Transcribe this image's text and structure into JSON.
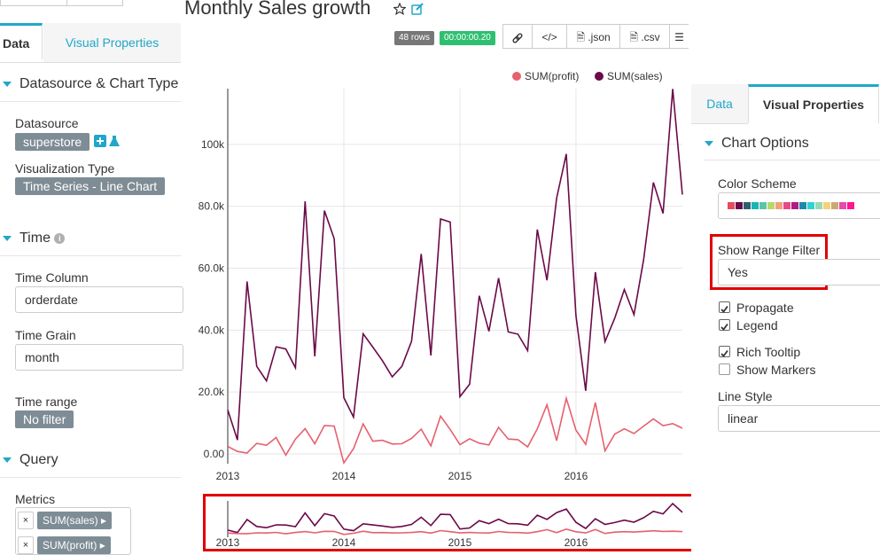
{
  "header": {
    "title": "Monthly Sales growth",
    "rows_badge": "48 rows",
    "time_badge": "00:00:00.20",
    "buttons": {
      "link_icon": "link-icon",
      "code_icon": "code-icon",
      "json_label": ".json",
      "csv_label": ".csv",
      "menu_icon": "menu-icon"
    },
    "colors": {
      "rows_badge": "#777777",
      "time_badge": "#2fbf71"
    }
  },
  "left_panel": {
    "tabs": [
      {
        "label": "Data",
        "active": true
      },
      {
        "label": "Visual Properties",
        "active": false
      }
    ],
    "sections": {
      "datasource": {
        "title": "Datasource & Chart Type",
        "datasource_label": "Datasource",
        "datasource_value": "superstore",
        "viz_label": "Visualization Type",
        "viz_value": "Time Series - Line Chart"
      },
      "time": {
        "title": "Time",
        "column_label": "Time Column",
        "column_value": "orderdate",
        "grain_label": "Time Grain",
        "grain_value": "month",
        "range_label": "Time range",
        "range_value": "No filter"
      },
      "query": {
        "title": "Query",
        "metrics_label": "Metrics",
        "metrics": [
          "SUM(sales)",
          "SUM(profit)"
        ],
        "remove_symbol": "×"
      }
    }
  },
  "right_panel": {
    "tabs": [
      {
        "label": "Data",
        "active": false
      },
      {
        "label": "Visual Properties",
        "active": true
      }
    ],
    "chart_options_title": "Chart Options",
    "color_scheme_label": "Color Scheme",
    "color_scheme_swatches": [
      "#e64b5f",
      "#6b0a48",
      "#2d5f70",
      "#19b5b5",
      "#5ec4a8",
      "#b8d86b",
      "#f59f7c",
      "#e64b87",
      "#b31983",
      "#1e8aab",
      "#2dd4d4",
      "#98d9b4",
      "#f5d27a",
      "#c9a976",
      "#e64bab",
      "#ff1493"
    ],
    "range_filter_label": "Show Range Filter",
    "range_filter_value": "Yes",
    "checkboxes": [
      {
        "label": "Propagate",
        "checked": true
      },
      {
        "label": "Legend",
        "checked": true
      },
      {
        "label": "Rich Tooltip",
        "checked": true
      },
      {
        "label": "Show Markers",
        "checked": false
      }
    ],
    "line_style_label": "Line Style",
    "line_style_value": "linear",
    "accent": "#20a7c9",
    "highlight": "#e00000"
  },
  "chart_data": {
    "type": "line",
    "legend": [
      "SUM(profit)",
      "SUM(sales)"
    ],
    "legend_position": "top-right",
    "y_ticks": [
      "0.00",
      "20.0k",
      "40.0k",
      "60.0k",
      "80.0k",
      "100k"
    ],
    "x_ticks": [
      "2013",
      "2014",
      "2015",
      "2016"
    ],
    "ylim": [
      0,
      118000
    ],
    "grid": true,
    "series": [
      {
        "name": "SUM(sales)",
        "color": "#6b0a48",
        "values": [
          14200,
          4500,
          55700,
          28300,
          23600,
          34600,
          33900,
          27800,
          81600,
          31500,
          78600,
          69500,
          18200,
          11900,
          38800,
          34500,
          30100,
          24900,
          28300,
          36400,
          64600,
          31800,
          75900,
          74900,
          18500,
          22500,
          51100,
          39600,
          56800,
          39400,
          38700,
          33400,
          72500,
          56100,
          82600,
          96900,
          44700,
          20400,
          58700,
          36300,
          43800,
          53100,
          45000,
          62800,
          87700,
          77700,
          117900,
          83800
        ]
      },
      {
        "name": "SUM(profit)",
        "color": "#e6606e",
        "values": [
          2400,
          800,
          300,
          3400,
          2800,
          5300,
          -400,
          4800,
          8200,
          3300,
          9200,
          9000,
          -2900,
          1700,
          9700,
          4100,
          4400,
          3200,
          3300,
          5000,
          8000,
          2600,
          12200,
          7900,
          3000,
          4900,
          3500,
          2900,
          8600,
          4800,
          4600,
          2300,
          8100,
          15900,
          4300,
          18000,
          7700,
          3100,
          16600,
          1000,
          6400,
          8100,
          6600,
          9000,
          11300,
          9100,
          9800,
          8300
        ]
      }
    ]
  }
}
